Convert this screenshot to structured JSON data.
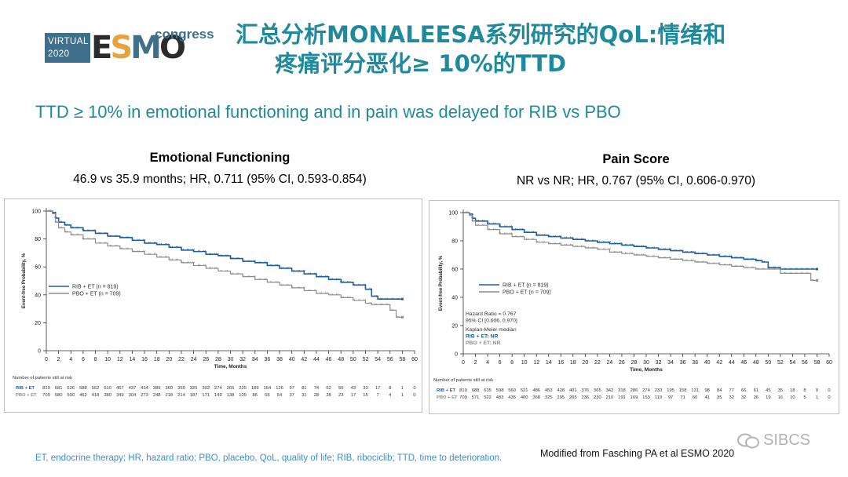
{
  "logo": {
    "virtual": "VIRTUAL",
    "year": "2020",
    "esmo": [
      "E",
      "S",
      "M",
      "O"
    ],
    "congress": "congress"
  },
  "title": {
    "line1": "汇总分析MONALEESA系列研究的QoL:情绪和",
    "line2": "疼痛评分恶化≥ 10%的TTD"
  },
  "subtitle": "TTD ≥ 10% in emotional functioning and in pain was delayed for RIB vs PBO",
  "footnote": "ET, endocrine therapy; HR, hazard ratio; PBO, placebo, QoL, quality of life; RIB, ribociclib; TTD, time to deterioration.",
  "source": "Modified from Fasching PA et al ESMO 2020",
  "watermark": "SIBCS",
  "colors": {
    "accent": "#1f8a9b",
    "rib": "#1f5fa0",
    "pbo": "#8c8c8c"
  },
  "chart_data": [
    {
      "type": "line",
      "title": "Emotional Functioning",
      "subtitle": "46.9 vs 35.9 months; HR, 0.711 (95% CI, 0.593-0.854)",
      "xlabel": "Time, Months",
      "ylabel": "Event-free Probability, %",
      "xlim": [
        0,
        60
      ],
      "ylim": [
        0,
        100
      ],
      "xticks": [
        0,
        2,
        4,
        6,
        8,
        10,
        12,
        14,
        16,
        18,
        20,
        22,
        24,
        26,
        28,
        30,
        32,
        34,
        36,
        38,
        40,
        42,
        44,
        46,
        48,
        50,
        52,
        54,
        56,
        58,
        60
      ],
      "yticks": [
        0,
        20,
        40,
        60,
        80,
        100
      ],
      "legend": [
        {
          "label": "RIB + ET (n = 819)",
          "color": "#1f5fa0"
        },
        {
          "label": "PBO + ET (n = 709)",
          "color": "#8c8c8c"
        }
      ],
      "series": [
        {
          "name": "RIB + ET",
          "x": [
            0,
            1,
            1.5,
            2,
            3,
            4,
            6,
            8,
            10,
            12,
            14,
            16,
            18,
            20,
            22,
            24,
            26,
            28,
            30,
            32,
            34,
            36,
            38,
            40,
            42,
            44,
            46,
            48,
            50,
            52,
            53,
            54,
            56,
            58
          ],
          "y": [
            100,
            99,
            95,
            92,
            90,
            88,
            86,
            84,
            82,
            81,
            79,
            77,
            76,
            74,
            72,
            71,
            69,
            68,
            66,
            64,
            63,
            61,
            59,
            57,
            55,
            53,
            51,
            49,
            47,
            44,
            39,
            37,
            37,
            37
          ]
        },
        {
          "name": "PBO + ET",
          "x": [
            0,
            1,
            1.5,
            2,
            3,
            4,
            6,
            8,
            10,
            12,
            14,
            16,
            18,
            20,
            22,
            24,
            26,
            28,
            30,
            32,
            34,
            36,
            38,
            40,
            42,
            44,
            46,
            48,
            50,
            52,
            53,
            54,
            56,
            57,
            58
          ],
          "y": [
            100,
            98,
            92,
            88,
            85,
            83,
            80,
            77,
            75,
            73,
            71,
            69,
            67,
            65,
            63,
            61,
            59,
            57,
            55,
            53,
            51,
            49,
            47,
            45,
            43,
            41,
            40,
            38,
            36,
            34,
            33,
            33,
            29,
            24,
            24
          ]
        }
      ],
      "risk_table": {
        "header": "Number of patients still at risk",
        "rows": [
          {
            "label": "RIB + ET",
            "values": [
              "819",
              "681",
              "626",
              "588",
              "552",
              "510",
              "467",
              "437",
              "414",
              "389",
              "360",
              "350",
              "325",
              "302",
              "274",
              "265",
              "225",
              "189",
              "154",
              "126",
              "97",
              "81",
              "74",
              "62",
              "55",
              "43",
              "33",
              "17",
              "8",
              "1",
              "0"
            ]
          },
          {
            "label": "PBO + ET",
            "values": [
              "709",
              "580",
              "500",
              "462",
              "418",
              "380",
              "349",
              "304",
              "273",
              "248",
              "218",
              "214",
              "187",
              "171",
              "149",
              "138",
              "105",
              "86",
              "65",
              "54",
              "37",
              "31",
              "28",
              "28",
              "23",
              "17",
              "15",
              "7",
              "4",
              "1",
              "0"
            ]
          }
        ]
      }
    },
    {
      "type": "line",
      "title": "Pain Score",
      "subtitle": "NR vs NR; HR, 0.767 (95% CI, 0.606-0.970)",
      "xlabel": "Time, Months",
      "ylabel": "Event-free Probability, %",
      "xlim": [
        0,
        60
      ],
      "ylim": [
        0,
        100
      ],
      "xticks": [
        0,
        2,
        4,
        6,
        8,
        10,
        12,
        14,
        16,
        18,
        20,
        22,
        24,
        26,
        28,
        30,
        32,
        34,
        36,
        38,
        40,
        42,
        44,
        46,
        48,
        50,
        52,
        54,
        56,
        58,
        60
      ],
      "yticks": [
        0,
        20,
        40,
        60,
        80,
        100
      ],
      "legend": [
        {
          "label": "RIB + ET (n = 819)",
          "color": "#1f5fa0"
        },
        {
          "label": "PBO + ET (n = 709)",
          "color": "#8c8c8c"
        }
      ],
      "annotation": {
        "hr": "Hazard Ratio = 0.767",
        "ci": "95% CI [0.606, 0.970]",
        "km": "Kaplan-Meier median",
        "rib": "RIB + ET: NR",
        "pbo": "PBO + ET: NR"
      },
      "series": [
        {
          "name": "RIB + ET",
          "x": [
            0,
            1,
            1.5,
            2,
            4,
            6,
            8,
            10,
            12,
            14,
            16,
            18,
            20,
            22,
            24,
            26,
            28,
            30,
            32,
            34,
            36,
            38,
            40,
            42,
            44,
            46,
            48,
            49,
            50,
            52,
            54,
            56,
            58
          ],
          "y": [
            100,
            99,
            96,
            94,
            92,
            90,
            88,
            86,
            84,
            83,
            82,
            81,
            80,
            79,
            78,
            77,
            76,
            75,
            74,
            73,
            72,
            71,
            70,
            69,
            68,
            67,
            66,
            65,
            61,
            60,
            60,
            60,
            60
          ]
        },
        {
          "name": "PBO + ET",
          "x": [
            0,
            1,
            1.5,
            2,
            4,
            6,
            8,
            10,
            12,
            14,
            16,
            18,
            20,
            22,
            24,
            26,
            28,
            30,
            32,
            34,
            36,
            38,
            40,
            42,
            44,
            46,
            48,
            50,
            52,
            54,
            56,
            57,
            58
          ],
          "y": [
            100,
            98,
            94,
            91,
            88,
            85,
            83,
            81,
            79,
            78,
            77,
            76,
            75,
            74,
            72,
            71,
            70,
            69,
            68,
            67,
            66,
            65,
            64,
            63,
            62,
            61,
            60,
            60,
            57,
            57,
            57,
            52,
            52
          ]
        }
      ],
      "risk_table": {
        "header": "Number of patients still at risk",
        "rows": [
          {
            "label": "RIB + ET",
            "values": [
              "819",
              "688",
              "635",
              "598",
              "560",
              "521",
              "486",
              "453",
              "428",
              "401",
              "376",
              "365",
              "342",
              "318",
              "286",
              "274",
              "233",
              "195",
              "158",
              "131",
              "98",
              "84",
              "77",
              "66",
              "61",
              "45",
              "35",
              "18",
              "8",
              "0",
              "0"
            ]
          },
          {
            "label": "PBO + ET",
            "values": [
              "709",
              "571",
              "522",
              "483",
              "435",
              "400",
              "368",
              "325",
              "295",
              "265",
              "236",
              "230",
              "210",
              "191",
              "169",
              "153",
              "119",
              "97",
              "71",
              "60",
              "41",
              "35",
              "32",
              "32",
              "26",
              "19",
              "16",
              "10",
              "5",
              "1",
              "0"
            ]
          }
        ]
      }
    }
  ]
}
